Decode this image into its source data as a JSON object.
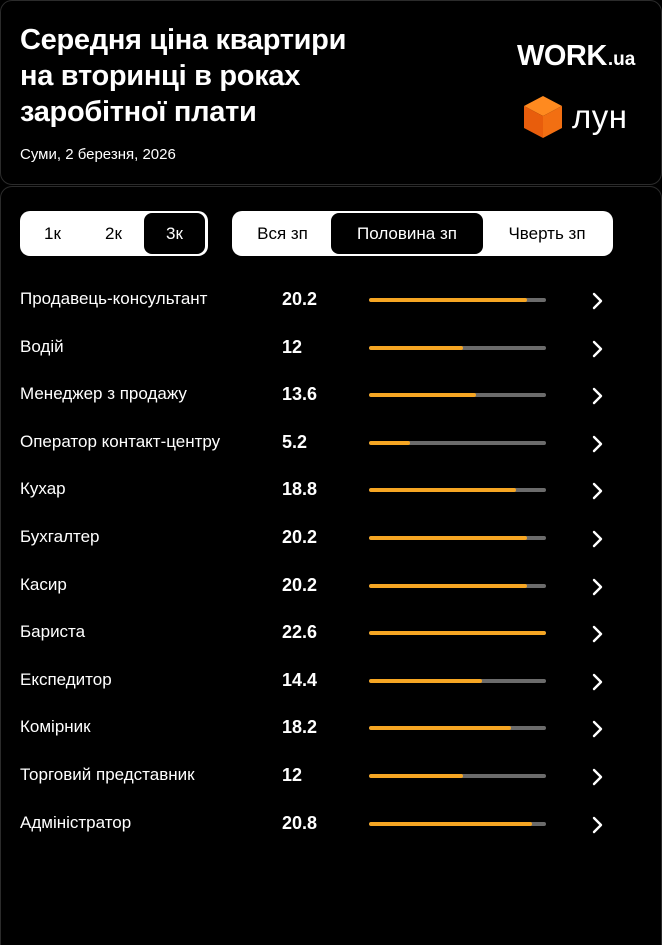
{
  "header": {
    "title": "Середня ціна квартири на вторинці в роках заробітної плати",
    "subtitle": "Суми, 2 березня, 2026",
    "logo_work_main": "WORK",
    "logo_work_suffix": ".ua",
    "logo_lun_text": "лун"
  },
  "room_filter": {
    "options": [
      "1к",
      "2к",
      "3к"
    ],
    "selected": "3к"
  },
  "salary_filter": {
    "options": [
      "Вся зп",
      "Половина зп",
      "Чверть зп"
    ],
    "selected": "Половина зп"
  },
  "accent_color": "#f6a623",
  "track_color": "#6b6b6b",
  "scale_max": 22.6,
  "professions": [
    {
      "name": "Продавець-консультант",
      "value": "20.2",
      "level": 0.894
    },
    {
      "name": "Водій",
      "value": "12",
      "level": 0.531
    },
    {
      "name": "Менеджер з продажу",
      "value": "13.6",
      "level": 0.602
    },
    {
      "name": "Оператор контакт-центру",
      "value": "5.2",
      "level": 0.23
    },
    {
      "name": "Кухар",
      "value": "18.8",
      "level": 0.832
    },
    {
      "name": "Бухгалтер",
      "value": "20.2",
      "level": 0.894
    },
    {
      "name": "Касир",
      "value": "20.2",
      "level": 0.894
    },
    {
      "name": "Бариста",
      "value": "22.6",
      "level": 1.0
    },
    {
      "name": "Експедитор",
      "value": "14.4",
      "level": 0.637
    },
    {
      "name": "Комірник",
      "value": "18.2",
      "level": 0.805
    },
    {
      "name": "Торговий представник",
      "value": "12",
      "level": 0.531
    },
    {
      "name": "Адміністратор",
      "value": "20.8",
      "level": 0.92
    }
  ]
}
